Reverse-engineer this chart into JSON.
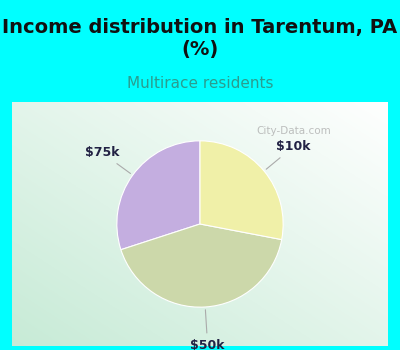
{
  "title": "Income distribution in Tarentum, PA\n(%)",
  "subtitle": "Multirace residents",
  "slices": [
    {
      "label": "$75k",
      "value": 30,
      "color": "#c4aee0"
    },
    {
      "label": "$50k",
      "value": 42,
      "color": "#ccd8aa"
    },
    {
      "label": "$10k",
      "value": 28,
      "color": "#f0f0a8"
    }
  ],
  "bg_color": "#00ffff",
  "chart_rect_color": "#ffffff",
  "title_fontsize": 14,
  "subtitle_fontsize": 11,
  "subtitle_color": "#2a9d8f",
  "label_fontsize": 9,
  "watermark": "City-Data.com",
  "startangle": 90,
  "label_color": "#222244"
}
